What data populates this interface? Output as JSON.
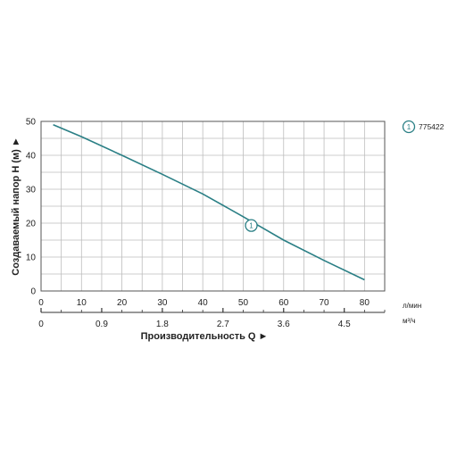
{
  "chart_data": {
    "type": "line",
    "xlabel": "Производительность Q ►",
    "ylabel": "Создаваемый напор H (м) ►",
    "x_unit_primary": "л/мин",
    "x_unit_secondary": "м³/ч",
    "xlim": [
      0,
      85
    ],
    "ylim": [
      0,
      50
    ],
    "x_ticks": [
      0,
      10,
      20,
      30,
      40,
      50,
      60,
      70,
      80
    ],
    "x_secondary_ticks": [
      {
        "label": "0",
        "value": 0
      },
      {
        "label": "0.9",
        "value": 15
      },
      {
        "label": "1.8",
        "value": 30
      },
      {
        "label": "2.7",
        "value": 45
      },
      {
        "label": "3.6",
        "value": 60
      },
      {
        "label": "4.5",
        "value": 75
      }
    ],
    "y_ticks": [
      0,
      10,
      20,
      30,
      40,
      50
    ],
    "grid": true,
    "legend_position": "top-right",
    "series": [
      {
        "name": "775422",
        "marker_label": "1",
        "color": "#2a7f85",
        "marker_at": {
          "x": 52,
          "y": 19.3
        },
        "points": [
          {
            "x": 3,
            "y": 49
          },
          {
            "x": 10,
            "y": 45.5
          },
          {
            "x": 20,
            "y": 40
          },
          {
            "x": 30,
            "y": 34.4
          },
          {
            "x": 40,
            "y": 28.6
          },
          {
            "x": 50,
            "y": 21.9
          },
          {
            "x": 60,
            "y": 15
          },
          {
            "x": 70,
            "y": 9
          },
          {
            "x": 80,
            "y": 3.3
          }
        ]
      }
    ]
  }
}
